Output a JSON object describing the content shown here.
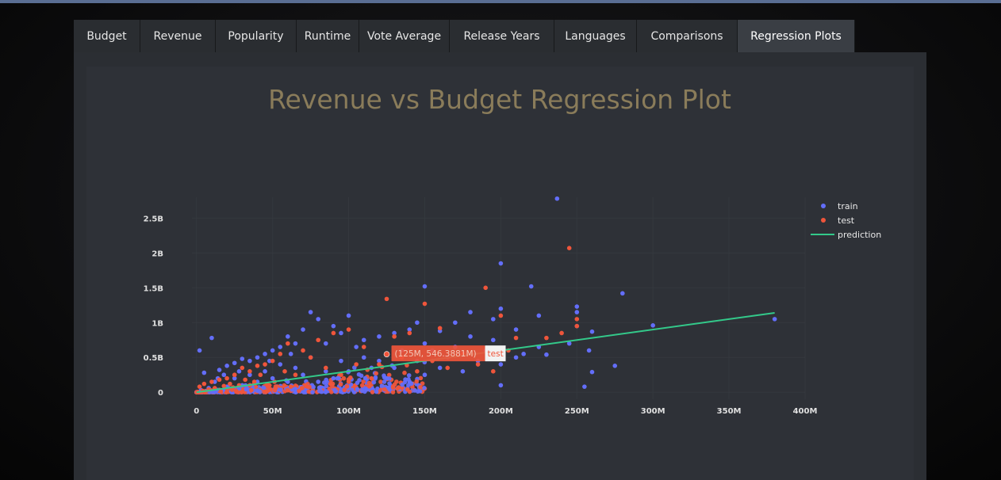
{
  "tabs": [
    {
      "label": "Budget",
      "active": false
    },
    {
      "label": "Revenue",
      "active": false
    },
    {
      "label": "Popularity",
      "active": false
    },
    {
      "label": "Runtime",
      "active": false
    },
    {
      "label": "Vote Average",
      "active": false
    },
    {
      "label": "Release Years",
      "active": false
    },
    {
      "label": "Languages",
      "active": false
    },
    {
      "label": "Comparisons",
      "active": false
    },
    {
      "label": "Regression Plots",
      "active": true
    }
  ],
  "colors": {
    "train": "#636efa",
    "test": "#ef553b",
    "prediction": "#33c98a",
    "title": "#8a7c5a"
  },
  "chart_data": {
    "type": "scatter",
    "title": "Revenue vs Budget Regression Plot",
    "xlabel": "",
    "ylabel": "",
    "xlim": [
      -3000000,
      400000000
    ],
    "ylim": [
      -100000000,
      2800000000
    ],
    "x_ticks": [
      {
        "value": 0,
        "label": "0"
      },
      {
        "value": 50000000,
        "label": "50M"
      },
      {
        "value": 100000000,
        "label": "100M"
      },
      {
        "value": 150000000,
        "label": "150M"
      },
      {
        "value": 200000000,
        "label": "200M"
      },
      {
        "value": 250000000,
        "label": "250M"
      },
      {
        "value": 300000000,
        "label": "300M"
      },
      {
        "value": 350000000,
        "label": "350M"
      },
      {
        "value": 400000000,
        "label": "400M"
      }
    ],
    "y_ticks": [
      {
        "value": 0,
        "label": "0"
      },
      {
        "value": 500000000,
        "label": "0.5B"
      },
      {
        "value": 1000000000,
        "label": "1B"
      },
      {
        "value": 1500000000,
        "label": "1.5B"
      },
      {
        "value": 2000000000,
        "label": "2B"
      },
      {
        "value": 2500000000,
        "label": "2.5B"
      }
    ],
    "grid": true,
    "legend_position": "top-right",
    "series": [
      {
        "name": "train",
        "kind": "markers",
        "points": [
          [
            237000000,
            2780000000
          ],
          [
            200000000,
            1850000000
          ],
          [
            220000000,
            1520000000
          ],
          [
            150000000,
            1520000000
          ],
          [
            280000000,
            1420000000
          ],
          [
            250000000,
            1230000000
          ],
          [
            250000000,
            1150000000
          ],
          [
            225000000,
            1100000000
          ],
          [
            300000000,
            960000000
          ],
          [
            380000000,
            1050000000
          ],
          [
            260000000,
            870000000
          ],
          [
            258000000,
            600000000
          ],
          [
            275000000,
            380000000
          ],
          [
            260000000,
            290000000
          ],
          [
            255000000,
            80000000
          ],
          [
            230000000,
            540000000
          ],
          [
            210000000,
            500000000
          ],
          [
            200000000,
            1200000000
          ],
          [
            195000000,
            1050000000
          ],
          [
            180000000,
            1150000000
          ],
          [
            170000000,
            1000000000
          ],
          [
            160000000,
            880000000
          ],
          [
            145000000,
            1000000000
          ],
          [
            140000000,
            900000000
          ],
          [
            130000000,
            850000000
          ],
          [
            120000000,
            800000000
          ],
          [
            110000000,
            750000000
          ],
          [
            100000000,
            1100000000
          ],
          [
            95000000,
            850000000
          ],
          [
            90000000,
            950000000
          ],
          [
            85000000,
            700000000
          ],
          [
            80000000,
            1050000000
          ],
          [
            75000000,
            1150000000
          ],
          [
            70000000,
            900000000
          ],
          [
            65000000,
            700000000
          ],
          [
            60000000,
            800000000
          ],
          [
            55000000,
            650000000
          ],
          [
            50000000,
            600000000
          ],
          [
            45000000,
            550000000
          ],
          [
            40000000,
            500000000
          ],
          [
            35000000,
            450000000
          ],
          [
            30000000,
            480000000
          ],
          [
            25000000,
            420000000
          ],
          [
            20000000,
            380000000
          ],
          [
            15000000,
            320000000
          ],
          [
            10000000,
            780000000
          ],
          [
            5000000,
            280000000
          ],
          [
            2000000,
            600000000
          ],
          [
            120000000,
            450000000
          ],
          [
            135000000,
            600000000
          ],
          [
            150000000,
            700000000
          ],
          [
            165000000,
            500000000
          ],
          [
            185000000,
            450000000
          ],
          [
            200000000,
            400000000
          ],
          [
            175000000,
            300000000
          ],
          [
            150000000,
            250000000
          ],
          [
            125000000,
            200000000
          ],
          [
            100000000,
            300000000
          ],
          [
            90000000,
            200000000
          ],
          [
            80000000,
            150000000
          ],
          [
            70000000,
            250000000
          ],
          [
            60000000,
            150000000
          ],
          [
            50000000,
            200000000
          ],
          [
            40000000,
            150000000
          ],
          [
            30000000,
            100000000
          ],
          [
            20000000,
            80000000
          ],
          [
            12000000,
            150000000
          ],
          [
            8000000,
            60000000
          ],
          [
            3000000,
            30000000
          ],
          [
            110000000,
            500000000
          ],
          [
            160000000,
            350000000
          ],
          [
            140000000,
            150000000
          ],
          [
            200000000,
            100000000
          ],
          [
            190000000,
            600000000
          ],
          [
            215000000,
            550000000
          ],
          [
            170000000,
            650000000
          ],
          [
            105000000,
            650000000
          ],
          [
            115000000,
            350000000
          ],
          [
            95000000,
            450000000
          ],
          [
            75000000,
            500000000
          ],
          [
            65000000,
            350000000
          ],
          [
            55000000,
            400000000
          ],
          [
            45000000,
            300000000
          ],
          [
            35000000,
            250000000
          ],
          [
            25000000,
            200000000
          ],
          [
            18000000,
            250000000
          ],
          [
            130000000,
            350000000
          ],
          [
            145000000,
            450000000
          ],
          [
            155000000,
            600000000
          ],
          [
            180000000,
            800000000
          ],
          [
            195000000,
            750000000
          ],
          [
            210000000,
            900000000
          ],
          [
            225000000,
            650000000
          ],
          [
            245000000,
            700000000
          ],
          [
            250000000,
            950000000
          ],
          [
            85000000,
            300000000
          ],
          [
            62000000,
            550000000
          ],
          [
            48000000,
            450000000
          ],
          [
            28000000,
            300000000
          ],
          [
            14000000,
            200000000
          ]
        ]
      },
      {
        "name": "test",
        "kind": "markers",
        "points": [
          [
            245000000,
            2070000000
          ],
          [
            190000000,
            1500000000
          ],
          [
            125000000,
            1340000000
          ],
          [
            150000000,
            1270000000
          ],
          [
            200000000,
            1100000000
          ],
          [
            250000000,
            1050000000
          ],
          [
            250000000,
            950000000
          ],
          [
            240000000,
            850000000
          ],
          [
            230000000,
            780000000
          ],
          [
            210000000,
            780000000
          ],
          [
            160000000,
            920000000
          ],
          [
            140000000,
            850000000
          ],
          [
            130000000,
            800000000
          ],
          [
            110000000,
            650000000
          ],
          [
            100000000,
            900000000
          ],
          [
            90000000,
            850000000
          ],
          [
            80000000,
            750000000
          ],
          [
            75000000,
            500000000
          ],
          [
            70000000,
            600000000
          ],
          [
            60000000,
            700000000
          ],
          [
            55000000,
            550000000
          ],
          [
            50000000,
            450000000
          ],
          [
            45000000,
            400000000
          ],
          [
            40000000,
            380000000
          ],
          [
            35000000,
            300000000
          ],
          [
            30000000,
            350000000
          ],
          [
            25000000,
            250000000
          ],
          [
            20000000,
            200000000
          ],
          [
            15000000,
            180000000
          ],
          [
            10000000,
            150000000
          ],
          [
            5000000,
            120000000
          ],
          [
            2000000,
            80000000
          ],
          [
            120000000,
            400000000
          ],
          [
            135000000,
            500000000
          ],
          [
            145000000,
            300000000
          ],
          [
            155000000,
            450000000
          ],
          [
            165000000,
            350000000
          ],
          [
            175000000,
            550000000
          ],
          [
            185000000,
            400000000
          ],
          [
            195000000,
            300000000
          ],
          [
            205000000,
            600000000
          ],
          [
            105000000,
            400000000
          ],
          [
            95000000,
            250000000
          ],
          [
            85000000,
            350000000
          ],
          [
            65000000,
            250000000
          ],
          [
            58000000,
            300000000
          ],
          [
            42000000,
            250000000
          ],
          [
            38000000,
            150000000
          ],
          [
            32000000,
            180000000
          ],
          [
            28000000,
            100000000
          ],
          [
            22000000,
            120000000
          ],
          [
            18000000,
            90000000
          ],
          [
            12000000,
            60000000
          ],
          [
            8000000,
            40000000
          ],
          [
            4000000,
            20000000
          ],
          [
            115000000,
            200000000
          ],
          [
            100000000,
            150000000
          ],
          [
            88000000,
            120000000
          ],
          [
            72000000,
            100000000
          ],
          [
            62000000,
            80000000
          ],
          [
            52000000,
            60000000
          ],
          [
            48000000,
            40000000
          ],
          [
            36000000,
            30000000
          ],
          [
            26000000,
            20000000
          ],
          [
            16000000,
            10000000
          ],
          [
            125000000,
            546390000
          ]
        ]
      },
      {
        "name": "prediction",
        "kind": "line",
        "points": [
          [
            0,
            0
          ],
          [
            380000000,
            1140000000
          ]
        ]
      }
    ],
    "hover_label": {
      "x": 125000000,
      "y": 546390000,
      "text": "(125M, 546.3881M)",
      "name": "test"
    }
  }
}
